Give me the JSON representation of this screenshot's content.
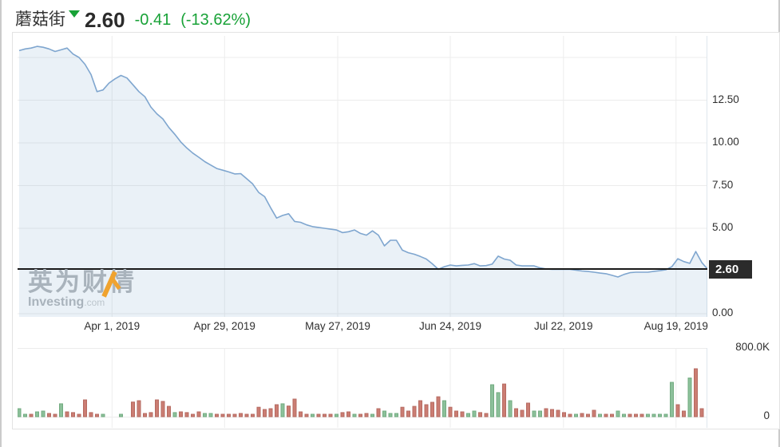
{
  "header": {
    "symbol": "蘑菇街",
    "arrow_icon": "down-triangle",
    "price": "2.60",
    "change": "-0.41",
    "change_pct": "(-13.62%)"
  },
  "watermark": {
    "cn": "英为财情",
    "en": "Investing",
    "domain": ".com"
  },
  "colors": {
    "accent_green": "#18a237",
    "line": "#7fa6cf",
    "area_fill": "rgba(127,166,207,0.16)",
    "up_bar": "#8cc09a",
    "up_bar_border": "#72ab80",
    "down_bar": "#cb7d73",
    "down_bar_border": "#b66a60",
    "grid": "#ececec",
    "plot_edge": "#dfe6ec",
    "axis_text": "#2f2f2f",
    "tag_bg": "#2b2b2b",
    "tag_text": "#ffffff",
    "current_price_line": "#1a1a1a",
    "watermark_text": "#a9b3bc",
    "watermark_accent": "#f0a32f"
  },
  "axes": {
    "price_ticks": [
      {
        "label": "12.50",
        "value": 12.5
      },
      {
        "label": "10.00",
        "value": 10
      },
      {
        "label": "7.50",
        "value": 7.5
      },
      {
        "label": "5.00",
        "value": 5
      },
      {
        "label": "0.00",
        "value": 0
      }
    ],
    "price_tag": "2.60",
    "volume_ticks": [
      {
        "label": "800.0K",
        "value": 800
      },
      {
        "label": "0",
        "value": 0
      }
    ]
  },
  "chart_data": {
    "type": "area",
    "title": "蘑菇街 (MOGU) price with volume, Apr–Aug 2019",
    "legend": "none",
    "grid": true,
    "x_ticks": [
      {
        "label": "Apr 1, 2019",
        "index": 15.5
      },
      {
        "label": "Apr 29, 2019",
        "index": 34.3
      },
      {
        "label": "May 27, 2019",
        "index": 53.2
      },
      {
        "label": "Jun 24, 2019",
        "index": 72.0
      },
      {
        "label": "Jul 22, 2019",
        "index": 90.9
      },
      {
        "label": "Aug 19, 2019",
        "index": 109.7
      }
    ],
    "price_ylim": [
      0,
      16.26
    ],
    "volume_ylim_k": [
      0,
      800
    ],
    "current_price": 2.6,
    "price_gridlines": [
      15,
      12.5,
      10,
      7.5,
      5,
      0
    ],
    "price_series": [
      15.4,
      15.5,
      15.55,
      15.65,
      15.6,
      15.5,
      15.35,
      15.45,
      15.55,
      15.2,
      15.0,
      14.6,
      14.0,
      13.0,
      13.1,
      13.5,
      13.75,
      13.95,
      13.8,
      13.4,
      13.0,
      12.7,
      12.1,
      11.7,
      11.4,
      10.9,
      10.5,
      10.05,
      9.7,
      9.4,
      9.16,
      8.9,
      8.7,
      8.5,
      8.4,
      8.3,
      8.18,
      8.2,
      7.9,
      7.6,
      7.1,
      6.85,
      6.2,
      5.6,
      5.75,
      5.85,
      5.4,
      5.35,
      5.2,
      5.1,
      5.05,
      5.0,
      4.95,
      4.9,
      4.75,
      4.8,
      4.9,
      4.7,
      4.6,
      4.85,
      4.6,
      3.97,
      4.3,
      4.3,
      3.72,
      3.57,
      3.48,
      3.35,
      3.2,
      2.92,
      2.6,
      2.75,
      2.85,
      2.8,
      2.83,
      2.85,
      2.93,
      2.8,
      2.82,
      2.9,
      3.37,
      3.2,
      3.13,
      2.85,
      2.8,
      2.8,
      2.8,
      2.68,
      2.62,
      2.6,
      2.6,
      2.6,
      2.6,
      2.55,
      2.5,
      2.47,
      2.43,
      2.38,
      2.34,
      2.25,
      2.15,
      2.3,
      2.4,
      2.43,
      2.43,
      2.43,
      2.48,
      2.52,
      2.57,
      2.75,
      3.22,
      3.05,
      2.95,
      3.64,
      3.0,
      2.6
    ],
    "volume_series_k": [
      {
        "c": "g",
        "v": 93
      },
      {
        "c": "g",
        "v": 28
      },
      {
        "c": "r",
        "v": 28
      },
      {
        "c": "g",
        "v": 56
      },
      {
        "c": "g",
        "v": 65
      },
      {
        "c": "r",
        "v": 37
      },
      {
        "c": "r",
        "v": 28
      },
      {
        "c": "g",
        "v": 150
      },
      {
        "c": "r",
        "v": 56
      },
      {
        "c": "r",
        "v": 47
      },
      {
        "c": "r",
        "v": 28
      },
      {
        "c": "r",
        "v": 195
      },
      {
        "c": "r",
        "v": 47
      },
      {
        "c": "r",
        "v": 28
      },
      {
        "c": "g",
        "v": 28
      },
      {
        "c": "n",
        "v": 0
      },
      {
        "c": "n",
        "v": 0
      },
      {
        "c": "g",
        "v": 28
      },
      {
        "c": "n",
        "v": 0
      },
      {
        "c": "r",
        "v": 170
      },
      {
        "c": "r",
        "v": 186
      },
      {
        "c": "r",
        "v": 37
      },
      {
        "c": "r",
        "v": 47
      },
      {
        "c": "r",
        "v": 195
      },
      {
        "c": "r",
        "v": 178
      },
      {
        "c": "r",
        "v": 120
      },
      {
        "c": "g",
        "v": 47
      },
      {
        "c": "r",
        "v": 56
      },
      {
        "c": "r",
        "v": 47
      },
      {
        "c": "r",
        "v": 28
      },
      {
        "c": "r",
        "v": 56
      },
      {
        "c": "g",
        "v": 37
      },
      {
        "c": "g",
        "v": 37
      },
      {
        "c": "r",
        "v": 28
      },
      {
        "c": "r",
        "v": 28
      },
      {
        "c": "r",
        "v": 28
      },
      {
        "c": "r",
        "v": 28
      },
      {
        "c": "r",
        "v": 37
      },
      {
        "c": "r",
        "v": 28
      },
      {
        "c": "r",
        "v": 28
      },
      {
        "c": "r",
        "v": 110
      },
      {
        "c": "r",
        "v": 84
      },
      {
        "c": "r",
        "v": 93
      },
      {
        "c": "r",
        "v": 140
      },
      {
        "c": "g",
        "v": 150
      },
      {
        "c": "r",
        "v": 124
      },
      {
        "c": "r",
        "v": 205
      },
      {
        "c": "r",
        "v": 56
      },
      {
        "c": "r",
        "v": 28
      },
      {
        "c": "g",
        "v": 28
      },
      {
        "c": "r",
        "v": 28
      },
      {
        "c": "r",
        "v": 28
      },
      {
        "c": "r",
        "v": 28
      },
      {
        "c": "g",
        "v": 28
      },
      {
        "c": "r",
        "v": 47
      },
      {
        "c": "r",
        "v": 56
      },
      {
        "c": "g",
        "v": 28
      },
      {
        "c": "r",
        "v": 28
      },
      {
        "c": "r",
        "v": 37
      },
      {
        "c": "g",
        "v": 28
      },
      {
        "c": "r",
        "v": 93
      },
      {
        "c": "g",
        "v": 65
      },
      {
        "c": "g",
        "v": 37
      },
      {
        "c": "g",
        "v": 37
      },
      {
        "c": "r",
        "v": 110
      },
      {
        "c": "r",
        "v": 65
      },
      {
        "c": "r",
        "v": 120
      },
      {
        "c": "r",
        "v": 186
      },
      {
        "c": "r",
        "v": 140
      },
      {
        "c": "r",
        "v": 167
      },
      {
        "c": "r",
        "v": 232
      },
      {
        "c": "g",
        "v": 186
      },
      {
        "c": "r",
        "v": 110
      },
      {
        "c": "r",
        "v": 65
      },
      {
        "c": "r",
        "v": 56
      },
      {
        "c": "g",
        "v": 37
      },
      {
        "c": "g",
        "v": 65
      },
      {
        "c": "r",
        "v": 47
      },
      {
        "c": "r",
        "v": 37
      },
      {
        "c": "g",
        "v": 372
      },
      {
        "c": "g",
        "v": 280
      },
      {
        "c": "r",
        "v": 380
      },
      {
        "c": "g",
        "v": 186
      },
      {
        "c": "r",
        "v": 93
      },
      {
        "c": "r",
        "v": 74
      },
      {
        "c": "r",
        "v": 158
      },
      {
        "c": "g",
        "v": 65
      },
      {
        "c": "g",
        "v": 65
      },
      {
        "c": "r",
        "v": 93
      },
      {
        "c": "r",
        "v": 84
      },
      {
        "c": "r",
        "v": 74
      },
      {
        "c": "r",
        "v": 47
      },
      {
        "c": "r",
        "v": 28
      },
      {
        "c": "g",
        "v": 28
      },
      {
        "c": "r",
        "v": 37
      },
      {
        "c": "r",
        "v": 28
      },
      {
        "c": "r",
        "v": 74
      },
      {
        "c": "g",
        "v": 28
      },
      {
        "c": "r",
        "v": 28
      },
      {
        "c": "r",
        "v": 28
      },
      {
        "c": "g",
        "v": 65
      },
      {
        "c": "g",
        "v": 28
      },
      {
        "c": "r",
        "v": 28
      },
      {
        "c": "r",
        "v": 28
      },
      {
        "c": "r",
        "v": 28
      },
      {
        "c": "g",
        "v": 28
      },
      {
        "c": "g",
        "v": 28
      },
      {
        "c": "g",
        "v": 28
      },
      {
        "c": "g",
        "v": 28
      },
      {
        "c": "g",
        "v": 400
      },
      {
        "c": "r",
        "v": 140
      },
      {
        "c": "r",
        "v": 65
      },
      {
        "c": "g",
        "v": 450
      },
      {
        "c": "r",
        "v": 558
      },
      {
        "c": "r",
        "v": 93
      },
      {
        "c": "n",
        "v": 0
      }
    ]
  }
}
